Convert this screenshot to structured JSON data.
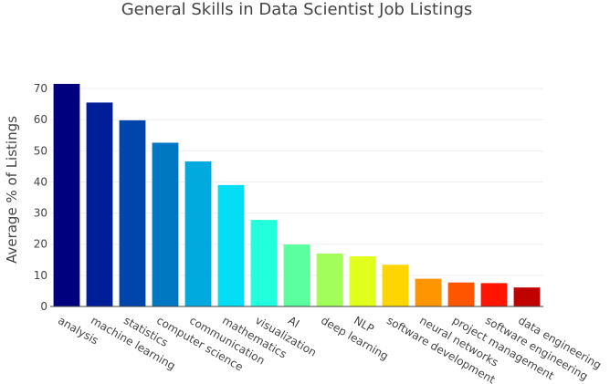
{
  "chart_data": {
    "type": "bar",
    "title": "General Skills in Data Scientist Job Listings",
    "xlabel": "",
    "ylabel": "Average % of Listings",
    "ylim": [
      0,
      75
    ],
    "yticks": [
      0,
      10,
      20,
      30,
      40,
      50,
      60,
      70
    ],
    "grid": true,
    "categories": [
      "analysis",
      "machine learning",
      "statistics",
      "computer science",
      "communication",
      "mathematics",
      "visualization",
      "AI",
      "deep learning",
      "NLP",
      "software development",
      "neural networks",
      "project management",
      "software engineering",
      "data engineering"
    ],
    "values": [
      71.5,
      65.5,
      59.8,
      52.6,
      46.6,
      39.0,
      27.8,
      19.9,
      17.0,
      16.1,
      13.4,
      8.9,
      7.7,
      7.5,
      6.1
    ],
    "colors": [
      "#00007f",
      "#001e98",
      "#0045ab",
      "#0077c2",
      "#00aadf",
      "#03def5",
      "#21ffdd",
      "#5cff9e",
      "#a2ff59",
      "#e0ff1a",
      "#ffd500",
      "#ff9500",
      "#ff5400",
      "#ff1500",
      "#c10000"
    ]
  }
}
